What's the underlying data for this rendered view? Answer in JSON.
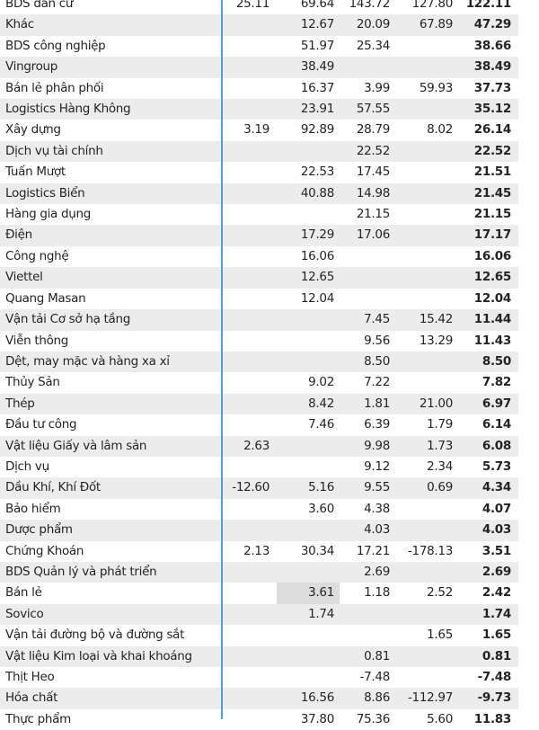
{
  "rows": [
    {
      "name": "BDS dân cư",
      "c1": "25.11",
      "c2": "69.64",
      "c3": "143.72",
      "c4": "127.80",
      "total": "122.11"
    },
    {
      "name": "Khác",
      "c1": "",
      "c2": "12.67",
      "c3": "20.09",
      "c4": "67.89",
      "total": "47.29"
    },
    {
      "name": "BDS công nghiệp",
      "c1": "",
      "c2": "51.97",
      "c3": "25.34",
      "c4": "",
      "total": "38.66"
    },
    {
      "name": "Vingroup",
      "c1": "",
      "c2": "38.49",
      "c3": "",
      "c4": "",
      "total": "38.49"
    },
    {
      "name": "Bán lẻ phân phối",
      "c1": "",
      "c2": "16.37",
      "c3": "3.99",
      "c4": "59.93",
      "total": "37.73"
    },
    {
      "name": "Logistics Hàng Không",
      "c1": "",
      "c2": "23.91",
      "c3": "57.55",
      "c4": "",
      "total": "35.12"
    },
    {
      "name": "Xây dựng",
      "c1": "3.19",
      "c2": "92.89",
      "c3": "28.79",
      "c4": "8.02",
      "total": "26.14"
    },
    {
      "name": "Dịch vụ tài chính",
      "c1": "",
      "c2": "",
      "c3": "22.52",
      "c4": "",
      "total": "22.52"
    },
    {
      "name": "Tuấn Mượt",
      "c1": "",
      "c2": "22.53",
      "c3": "17.45",
      "c4": "",
      "total": "21.51"
    },
    {
      "name": "Logistics Biển",
      "c1": "",
      "c2": "40.88",
      "c3": "14.98",
      "c4": "",
      "total": "21.45"
    },
    {
      "name": "Hàng gia dụng",
      "c1": "",
      "c2": "",
      "c3": "21.15",
      "c4": "",
      "total": "21.15"
    },
    {
      "name": "Điện",
      "c1": "",
      "c2": "17.29",
      "c3": "17.06",
      "c4": "",
      "total": "17.17"
    },
    {
      "name": "Công nghệ",
      "c1": "",
      "c2": "16.06",
      "c3": "",
      "c4": "",
      "total": "16.06"
    },
    {
      "name": "Viettel",
      "c1": "",
      "c2": "12.65",
      "c3": "",
      "c4": "",
      "total": "12.65"
    },
    {
      "name": "Quang Masan",
      "c1": "",
      "c2": "12.04",
      "c3": "",
      "c4": "",
      "total": "12.04"
    },
    {
      "name": "Vận tải Cơ sở hạ tầng",
      "c1": "",
      "c2": "",
      "c3": "7.45",
      "c4": "15.42",
      "total": "11.44"
    },
    {
      "name": "Viễn thông",
      "c1": "",
      "c2": "",
      "c3": "9.56",
      "c4": "13.29",
      "total": "11.43"
    },
    {
      "name": "Dệt, may mặc và hàng xa xỉ",
      "c1": "",
      "c2": "",
      "c3": "8.50",
      "c4": "",
      "total": "8.50"
    },
    {
      "name": "Thủy Sản",
      "c1": "",
      "c2": "9.02",
      "c3": "7.22",
      "c4": "",
      "total": "7.82"
    },
    {
      "name": "Thép",
      "c1": "",
      "c2": "8.42",
      "c3": "1.81",
      "c4": "21.00",
      "total": "6.97"
    },
    {
      "name": "Đầu tư công",
      "c1": "",
      "c2": "7.46",
      "c3": "6.39",
      "c4": "1.79",
      "total": "6.14"
    },
    {
      "name": "Vật liệu Giấy và lâm sản",
      "c1": "2.63",
      "c2": "",
      "c3": "9.98",
      "c4": "1.73",
      "total": "6.08"
    },
    {
      "name": "Dịch vụ",
      "c1": "",
      "c2": "",
      "c3": "9.12",
      "c4": "2.34",
      "total": "5.73"
    },
    {
      "name": "Dầu Khí, Khí Đốt",
      "c1": "-12.60",
      "c2": "5.16",
      "c3": "9.55",
      "c4": "0.69",
      "total": "4.34"
    },
    {
      "name": "Bảo hiểm",
      "c1": "",
      "c2": "3.60",
      "c3": "4.38",
      "c4": "",
      "total": "4.07"
    },
    {
      "name": "Dược phẩm",
      "c1": "",
      "c2": "",
      "c3": "4.03",
      "c4": "",
      "total": "4.03"
    },
    {
      "name": "Chứng Khoán",
      "c1": "2.13",
      "c2": "30.34",
      "c3": "17.21",
      "c4": "-178.13",
      "total": "3.51"
    },
    {
      "name": "BDS Quản lý và phát triển",
      "c1": "",
      "c2": "",
      "c3": "2.69",
      "c4": "",
      "total": "2.69"
    },
    {
      "name": "Bán lẻ",
      "c1": "",
      "c2": "3.61",
      "c3": "1.18",
      "c4": "2.52",
      "total": "2.42",
      "highlight": "c2"
    },
    {
      "name": "Sovico",
      "c1": "",
      "c2": "1.74",
      "c3": "",
      "c4": "",
      "total": "1.74"
    },
    {
      "name": "Vận tải đường bộ và đường sắt",
      "c1": "",
      "c2": "",
      "c3": "",
      "c4": "1.65",
      "total": "1.65"
    },
    {
      "name": "Vật liệu Kim loại và khai khoáng",
      "c1": "",
      "c2": "",
      "c3": "0.81",
      "c4": "",
      "total": "0.81"
    },
    {
      "name": "Thịt Heo",
      "c1": "",
      "c2": "",
      "c3": "-7.48",
      "c4": "",
      "total": "-7.48"
    },
    {
      "name": "Hóa chất",
      "c1": "",
      "c2": "16.56",
      "c3": "8.86",
      "c4": "-112.97",
      "total": "-9.73"
    },
    {
      "name": "Thực phẩm",
      "c1": "",
      "c2": "37.80",
      "c3": "75.36",
      "c4": "5.60",
      "total": "11.83"
    }
  ],
  "colors": {
    "stripe": "#ececec",
    "divider": "#5b9bd5",
    "highlight": "#dcdcdc"
  }
}
